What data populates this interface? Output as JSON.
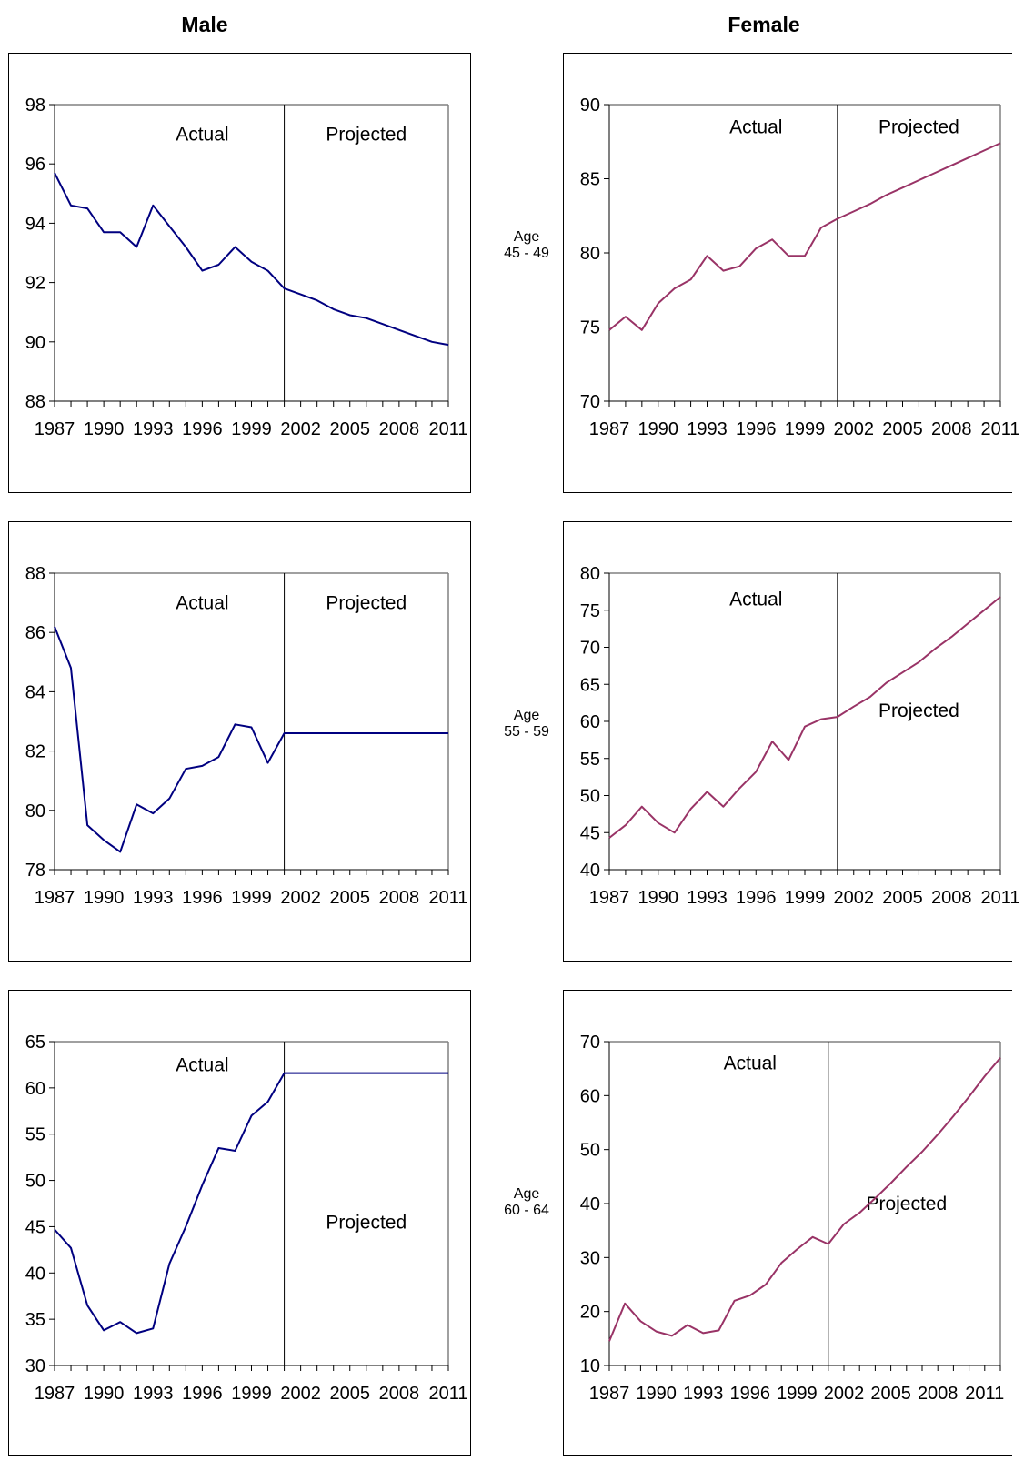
{
  "headers": {
    "male": "Male",
    "female": "Female"
  },
  "age_labels": [
    {
      "line1": "Age",
      "line2": "45 - 49"
    },
    {
      "line1": "Age",
      "line2": "55 - 59"
    },
    {
      "line1": "Age",
      "line2": "60 - 64"
    }
  ],
  "colors": {
    "male": "#000080",
    "female": "#993366",
    "axis": "#000000",
    "frame": "#808080"
  },
  "chart_data": [
    {
      "type": "line",
      "title": "",
      "xlabel": "",
      "ylabel": "",
      "x_ticks": [
        1987,
        1990,
        1993,
        1996,
        1999,
        2002,
        2005,
        2008,
        2011
      ],
      "xlim": [
        1987,
        2011
      ],
      "ylim": [
        88,
        98
      ],
      "y_ticks": [
        88,
        90,
        92,
        94,
        96,
        98
      ],
      "divider_x": 2001,
      "annotations": [
        {
          "text": "Actual",
          "x": 1996,
          "y": 97.0
        },
        {
          "text": "Projected",
          "x": 2006,
          "y": 97.0
        }
      ],
      "series": [
        {
          "color": "male",
          "x": [
            1987,
            1988,
            1989,
            1990,
            1991,
            1992,
            1993,
            1994,
            1995,
            1996,
            1997,
            1998,
            1999,
            2000,
            2001,
            2002,
            2003,
            2004,
            2005,
            2006,
            2007,
            2008,
            2009,
            2010,
            2011
          ],
          "y": [
            95.7,
            94.6,
            94.5,
            93.7,
            93.7,
            93.2,
            94.6,
            93.9,
            93.2,
            92.4,
            92.6,
            93.2,
            92.7,
            92.4,
            91.8,
            91.6,
            91.4,
            91.1,
            90.9,
            90.8,
            90.6,
            90.4,
            90.2,
            90.0,
            89.9
          ]
        }
      ]
    },
    {
      "type": "line",
      "title": "",
      "xlabel": "",
      "ylabel": "",
      "x_ticks": [
        1987,
        1990,
        1993,
        1996,
        1999,
        2002,
        2005,
        2008,
        2011
      ],
      "xlim": [
        1987,
        2011
      ],
      "ylim": [
        70,
        90
      ],
      "y_ticks": [
        70,
        75,
        80,
        85,
        90
      ],
      "divider_x": 2001,
      "annotations": [
        {
          "text": "Actual",
          "x": 1996,
          "y": 88.5
        },
        {
          "text": "Projected",
          "x": 2006,
          "y": 88.5
        }
      ],
      "series": [
        {
          "color": "female",
          "x": [
            1987,
            1988,
            1989,
            1990,
            1991,
            1992,
            1993,
            1994,
            1995,
            1996,
            1997,
            1998,
            1999,
            2000,
            2001,
            2002,
            2003,
            2004,
            2005,
            2006,
            2007,
            2008,
            2009,
            2010,
            2011
          ],
          "y": [
            74.8,
            75.7,
            74.8,
            76.6,
            77.6,
            78.2,
            79.8,
            78.8,
            79.1,
            80.3,
            80.9,
            79.8,
            79.8,
            81.7,
            82.3,
            82.8,
            83.3,
            83.9,
            84.4,
            84.9,
            85.4,
            85.9,
            86.4,
            86.9,
            87.4
          ]
        }
      ]
    },
    {
      "type": "line",
      "title": "",
      "xlabel": "",
      "ylabel": "",
      "x_ticks": [
        1987,
        1990,
        1993,
        1996,
        1999,
        2002,
        2005,
        2008,
        2011
      ],
      "xlim": [
        1987,
        2011
      ],
      "ylim": [
        78,
        88
      ],
      "y_ticks": [
        78,
        80,
        82,
        84,
        86,
        88
      ],
      "divider_x": 2001,
      "annotations": [
        {
          "text": "Actual",
          "x": 1996,
          "y": 87.0
        },
        {
          "text": "Projected",
          "x": 2006,
          "y": 87.0
        }
      ],
      "series": [
        {
          "color": "male",
          "x": [
            1987,
            1988,
            1989,
            1990,
            1991,
            1992,
            1993,
            1994,
            1995,
            1996,
            1997,
            1998,
            1999,
            2000,
            2001,
            2011
          ],
          "y": [
            86.2,
            84.8,
            79.5,
            79.0,
            78.6,
            80.2,
            79.9,
            80.4,
            81.4,
            81.5,
            81.8,
            82.9,
            82.8,
            81.6,
            82.6,
            82.6
          ]
        }
      ]
    },
    {
      "type": "line",
      "title": "",
      "xlabel": "",
      "ylabel": "",
      "x_ticks": [
        1987,
        1990,
        1993,
        1996,
        1999,
        2002,
        2005,
        2008,
        2011
      ],
      "xlim": [
        1987,
        2011
      ],
      "ylim": [
        40,
        80
      ],
      "y_ticks": [
        40,
        45,
        50,
        55,
        60,
        65,
        70,
        75,
        80
      ],
      "divider_x": 2001,
      "annotations": [
        {
          "text": "Actual",
          "x": 1996,
          "y": 76.5
        },
        {
          "text": "Projected",
          "x": 2006,
          "y": 61.5
        }
      ],
      "series": [
        {
          "color": "female",
          "x": [
            1987,
            1988,
            1989,
            1990,
            1991,
            1992,
            1993,
            1994,
            1995,
            1996,
            1997,
            1998,
            1999,
            2000,
            2001,
            2002,
            2003,
            2004,
            2005,
            2006,
            2007,
            2008,
            2009,
            2010,
            2011
          ],
          "y": [
            44.3,
            46.0,
            48.5,
            46.3,
            45.0,
            48.2,
            50.5,
            48.5,
            51.0,
            53.2,
            57.3,
            54.8,
            59.3,
            60.3,
            60.6,
            62.0,
            63.3,
            65.2,
            66.6,
            68.0,
            69.8,
            71.4,
            73.2,
            75.0,
            76.8
          ]
        }
      ]
    },
    {
      "type": "line",
      "title": "",
      "xlabel": "",
      "ylabel": "",
      "x_ticks": [
        1987,
        1990,
        1993,
        1996,
        1999,
        2002,
        2005,
        2008,
        2011
      ],
      "xlim": [
        1987,
        2011
      ],
      "ylim": [
        30,
        65
      ],
      "y_ticks": [
        30,
        35,
        40,
        45,
        50,
        55,
        60,
        65
      ],
      "divider_x": 2001,
      "annotations": [
        {
          "text": "Actual",
          "x": 1996,
          "y": 62.5
        },
        {
          "text": "Projected",
          "x": 2006,
          "y": 45.5
        }
      ],
      "series": [
        {
          "color": "male",
          "x": [
            1987,
            1988,
            1989,
            1990,
            1991,
            1992,
            1993,
            1994,
            1995,
            1996,
            1997,
            1998,
            1999,
            2000,
            2001,
            2011
          ],
          "y": [
            44.7,
            42.7,
            36.5,
            33.8,
            34.7,
            33.5,
            34.0,
            41.0,
            45.0,
            49.5,
            53.5,
            53.2,
            57.0,
            58.5,
            61.6,
            61.6
          ]
        }
      ]
    },
    {
      "type": "line",
      "title": "",
      "xlabel": "",
      "ylabel": "",
      "x_ticks": [
        1987,
        1990,
        1993,
        1996,
        1999,
        2002,
        2005,
        2008,
        2011
      ],
      "xlim": [
        1987,
        2012
      ],
      "ylim": [
        10,
        70
      ],
      "y_ticks": [
        10,
        20,
        30,
        40,
        50,
        60,
        70
      ],
      "divider_x": 2001,
      "annotations": [
        {
          "text": "Actual",
          "x": 1996,
          "y": 66.0
        },
        {
          "text": "Projected",
          "x": 2006,
          "y": 40.0
        }
      ],
      "series": [
        {
          "color": "female",
          "x": [
            1987,
            1988,
            1989,
            1990,
            1991,
            1992,
            1993,
            1994,
            1995,
            1996,
            1997,
            1998,
            1999,
            2000,
            2001,
            2002,
            2003,
            2004,
            2005,
            2006,
            2007,
            2008,
            2009,
            2010,
            2011,
            2012
          ],
          "y": [
            14.5,
            21.5,
            18.2,
            16.3,
            15.5,
            17.5,
            16.0,
            16.5,
            22.0,
            23.0,
            25.0,
            29.0,
            31.5,
            33.8,
            32.5,
            36.2,
            38.3,
            41.0,
            43.8,
            46.8,
            49.6,
            52.8,
            56.2,
            59.8,
            63.6,
            67.0
          ]
        }
      ]
    }
  ]
}
